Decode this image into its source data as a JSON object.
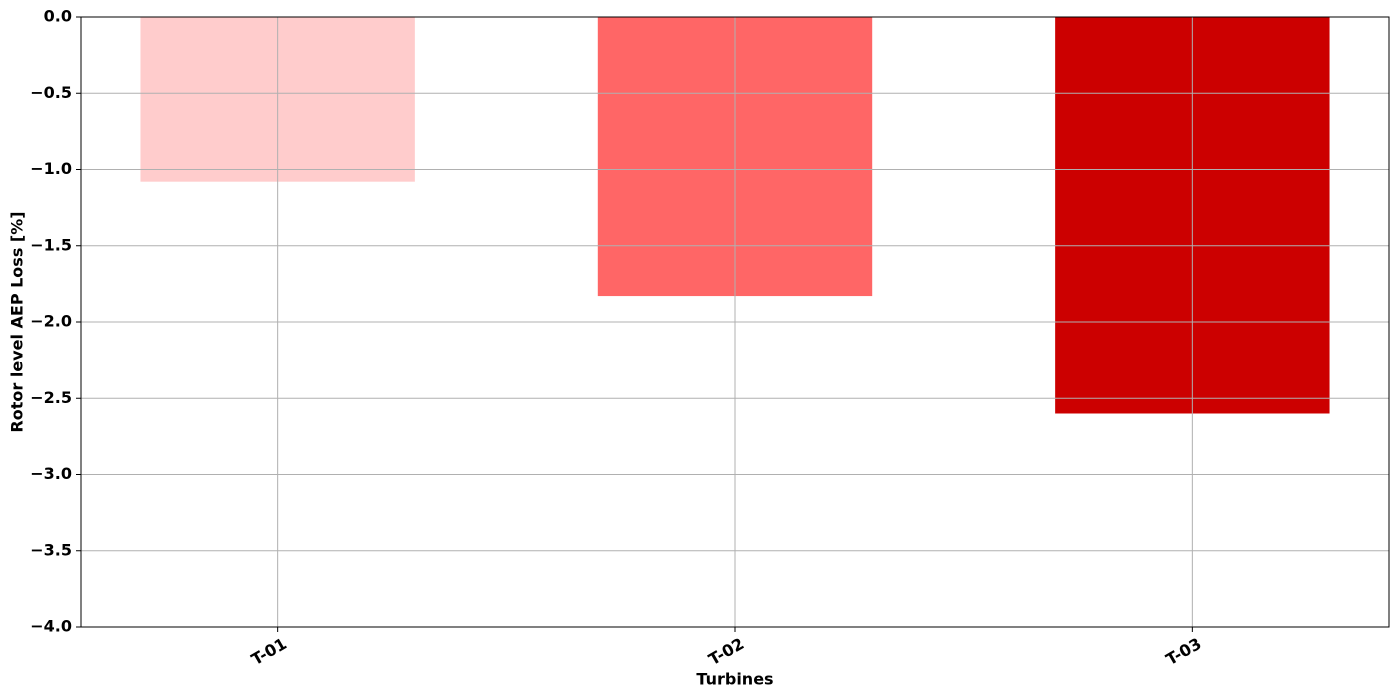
{
  "chart_data": {
    "type": "bar",
    "xlabel": "Turbines",
    "ylabel": "Rotor level AEP Loss [%]",
    "categories": [
      "T-01",
      "T-02",
      "T-03"
    ],
    "values": [
      -1.08,
      -1.83,
      -2.6
    ],
    "colors": [
      "#ffcccc",
      "#ff6666",
      "#cc0000"
    ],
    "ylim": [
      -4,
      0
    ],
    "yticks": [
      {
        "value": -4,
        "label": "−4.0"
      },
      {
        "value": -3.5,
        "label": "−3.5"
      },
      {
        "value": -3,
        "label": "−3.0"
      },
      {
        "value": -2.5,
        "label": "−2.5"
      },
      {
        "value": -2,
        "label": "−2.0"
      },
      {
        "value": -1.5,
        "label": "−1.5"
      },
      {
        "value": -1,
        "label": "−1.0"
      },
      {
        "value": -0.5,
        "label": "−0.5"
      },
      {
        "value": 0,
        "label": "0.0"
      }
    ],
    "grid": true
  }
}
